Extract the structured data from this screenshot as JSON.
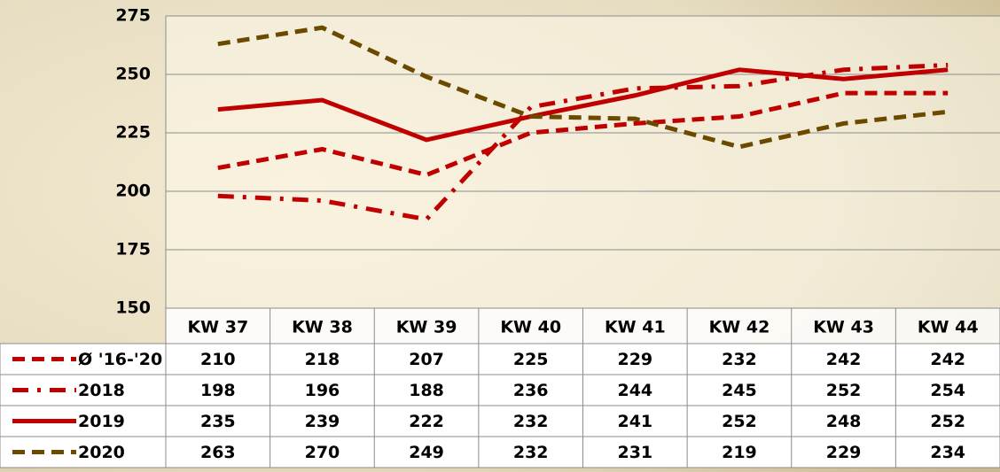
{
  "chart_data": {
    "type": "line",
    "categories": [
      "KW 37",
      "KW 38",
      "KW 39",
      "KW 40",
      "KW 41",
      "KW 42",
      "KW 43",
      "KW 44"
    ],
    "series": [
      {
        "name": "Ø '16-'20",
        "color": "#c00000",
        "style": "dashed",
        "values": [
          210,
          218,
          207,
          225,
          229,
          232,
          242,
          242
        ]
      },
      {
        "name": "2018",
        "color": "#c00000",
        "style": "dashdot",
        "values": [
          198,
          196,
          188,
          236,
          244,
          245,
          252,
          254
        ]
      },
      {
        "name": "2019",
        "color": "#c00000",
        "style": "solid",
        "values": [
          235,
          239,
          222,
          232,
          241,
          252,
          248,
          252
        ]
      },
      {
        "name": "2020",
        "color": "#6b4a00",
        "style": "dashed",
        "values": [
          263,
          270,
          249,
          232,
          231,
          219,
          229,
          234
        ]
      }
    ],
    "ylim": [
      150,
      275
    ],
    "yticks": [
      150,
      175,
      200,
      225,
      250,
      275
    ],
    "grid": true
  }
}
